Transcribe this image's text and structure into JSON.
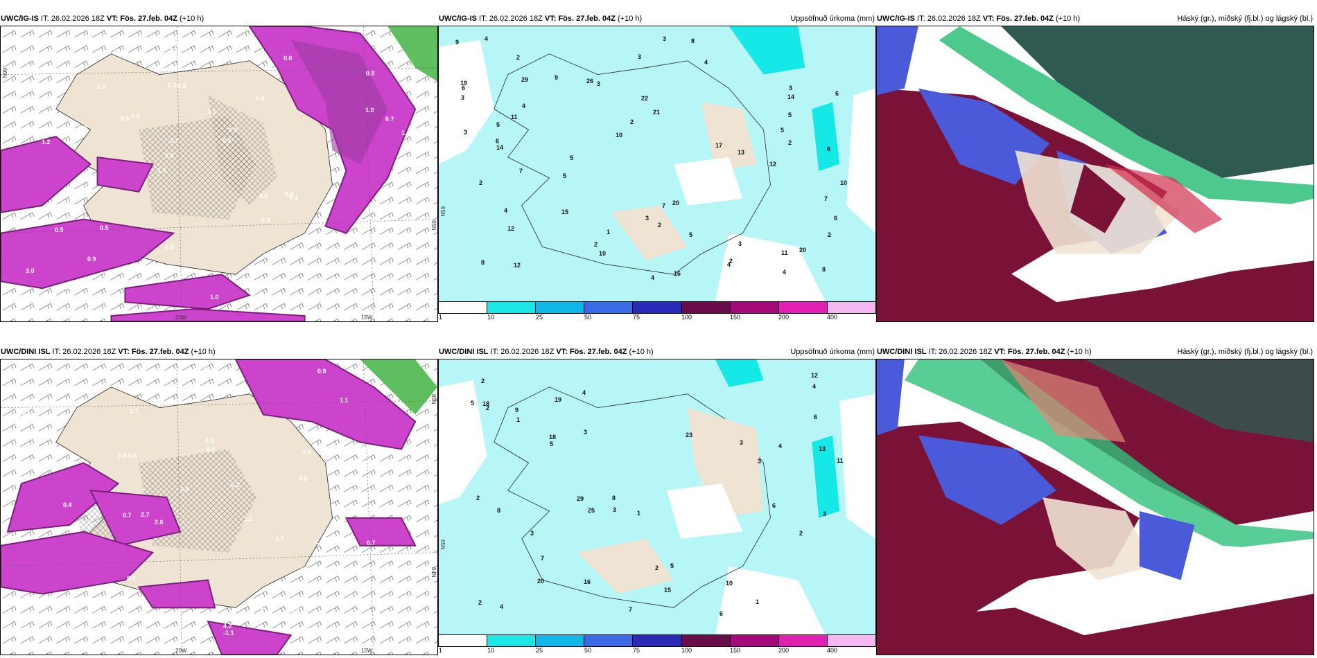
{
  "panels": [
    {
      "id": "top-left",
      "title_model": "UWC/IG-IS",
      "title_it": " IT: 26.02.2026 18Z ",
      "title_vt": "VT: Fös. 27.feb. 04Z",
      "title_lead": " (+10 h)",
      "title_right": "",
      "axis_labels": [
        "20W",
        "15W",
        "65N",
        "66N"
      ],
      "values": [
        "0.5",
        "1.2",
        "0.5",
        "1.5",
        "0.8",
        "1.9",
        "2.5",
        "1.1",
        "0.5",
        "2.8",
        "3.0",
        "0.9",
        "0.3",
        "0.5",
        "0.3",
        "1.1",
        "1.3",
        "1.4",
        "0.5",
        "1.0",
        "0.6",
        "0.6",
        "0.7",
        "1.8",
        "0.6",
        "0.5",
        "0.7",
        "0.3",
        "0.4",
        "1.0",
        "0.6",
        "2.2",
        "0.3",
        "1.0",
        "0.7",
        "0.5"
      ]
    },
    {
      "id": "top-middle",
      "title_model": "UWC/IG-IS",
      "title_it": " IT: 26.02.2026 18Z ",
      "title_vt": "VT: Fös. 27.feb. 04Z",
      "title_lead": " (+10 h)",
      "title_right": "Uppsöfnuð úrkoma (mm)",
      "axis_labels": [
        "65N"
      ],
      "colorbar_ticks": [
        "1",
        "10",
        "25",
        "50",
        "75",
        "100",
        "150",
        "200",
        "400"
      ],
      "values": [
        "6",
        "5",
        "2",
        "17",
        "11",
        "16",
        "20",
        "29",
        "12",
        "14",
        "5",
        "7",
        "4",
        "3",
        "5",
        "4",
        "5",
        "2",
        "3",
        "4",
        "2",
        "7",
        "6",
        "8",
        "3",
        "6",
        "12",
        "14",
        "9",
        "20",
        "26",
        "22",
        "21",
        "11",
        "13",
        "19",
        "8",
        "4",
        "3",
        "2",
        "3",
        "10",
        "5",
        "10",
        "12",
        "15",
        "8",
        "3",
        "4",
        "2",
        "1",
        "2",
        "3",
        "4",
        "5",
        "6",
        "7",
        "9",
        "10",
        "2",
        "6",
        "3",
        "4",
        "2"
      ]
    },
    {
      "id": "top-right",
      "title_model": "UWC/IG-IS",
      "title_it": " IT: 26.02.2026 18Z ",
      "title_vt": "VT: Fös. 27.feb. 04Z",
      "title_lead": " (+10 h)",
      "title_right": "Háský (gr.), miðský (fj.bl.) og lágský (bl.)"
    },
    {
      "id": "bottom-left",
      "title_model": "UWC/DINI ISL",
      "title_it": " IT: 26.02.2026 18Z ",
      "title_vt": "VT: Fös. 27.feb. 04Z",
      "title_lead": " (+10 h)",
      "title_right": "",
      "axis_labels": [
        "20W",
        "15W",
        "65N",
        "64N"
      ],
      "values": [
        "0.3",
        "0.8",
        "0.9",
        "0.6",
        "0.7",
        "0.4",
        "0.7",
        "4.2",
        "0.8",
        "1.4",
        "-2.6",
        "0.5",
        "0.7",
        "2.7",
        "2.9",
        "2.6",
        "-1.1",
        "1.1",
        "-2.3",
        "3.0",
        "0.4",
        "0.3",
        "1.0",
        "1.8",
        "4.8",
        "-1.0",
        "0.0",
        "1.1",
        "-2.8",
        "1.7",
        "0.9",
        "1.4",
        "0.7",
        "0.5",
        "0.6"
      ]
    },
    {
      "id": "bottom-middle",
      "title_model": "UWC/DINI ISL",
      "title_it": " IT: 26.02.2026 18Z ",
      "title_vt": "VT: Fös. 27.feb. 04Z",
      "title_lead": " (+10 h)",
      "title_right": "Uppsöfnuð úrkoma (mm)",
      "axis_labels": [
        "65N"
      ],
      "colorbar_ticks": [
        "1",
        "10",
        "25",
        "50",
        "75",
        "100",
        "150",
        "200",
        "400"
      ],
      "values": [
        "1",
        "4",
        "3",
        "23",
        "2",
        "12",
        "18",
        "20",
        "29",
        "15",
        "25",
        "19",
        "16",
        "18",
        "2",
        "3",
        "5",
        "4",
        "7",
        "6",
        "10",
        "11",
        "2",
        "1",
        "8",
        "3",
        "4",
        "6",
        "13",
        "2",
        "5",
        "7",
        "9",
        "3",
        "2",
        "1",
        "3",
        "8",
        "4",
        "5",
        "6",
        "2",
        "3"
      ]
    },
    {
      "id": "bottom-right",
      "title_model": "UWC/DINI ISL",
      "title_it": " IT: 26.02.2026 18Z ",
      "title_vt": "VT: Fös. 27.feb. 04Z",
      "title_lead": " (+10 h)",
      "title_right": "Háský (gr.), miðský (fj.bl.) og lágský (bl.)"
    }
  ],
  "colors": {
    "land": "#efe3d3",
    "precip_light": "#b6f6f6",
    "precip_cyan": "#16e7e7",
    "magenta": "#cc44cc",
    "purple": "#7a1f7a",
    "green": "#5fbf5f",
    "cloud_high": "#2f5a52",
    "cloud_mid": "#7a1238",
    "cloud_low": "#4a5ad8",
    "cloud_green": "#2ec07a",
    "cbar": [
      "#ffffff",
      "#1ee6e6",
      "#10b8e8",
      "#3a6ae6",
      "#2b2ab8",
      "#6a0c4a",
      "#a40a7c",
      "#e020b0",
      "#f4b8f0"
    ]
  }
}
